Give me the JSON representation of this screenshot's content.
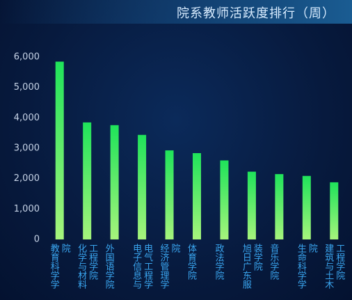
{
  "chart_data": {
    "type": "bar",
    "title": "院系教师活跃度排行（周）",
    "categories": [
      "教育科学学院",
      "化学与材料工程学院",
      "外国语学院",
      "电子信息与电气工程学院",
      "经济管理学院",
      "体育学院",
      "政法学院",
      "旭日广东服装学院",
      "音乐学院",
      "生命科学学院",
      "建筑与土木工程学院"
    ],
    "values": [
      5850,
      3850,
      3760,
      3440,
      2930,
      2840,
      2600,
      2230,
      2150,
      2090,
      1880
    ],
    "colors": [
      "#1fe35a",
      "#a6f47c"
    ],
    "ylim": [
      0,
      6000
    ],
    "yticks": [
      0,
      {
        "value": 1000,
        "label": "1,000"
      },
      {
        "value": 2000,
        "label": "2,000"
      },
      {
        "value": 3000,
        "label": "3,000"
      },
      {
        "value": 4000,
        "label": "4,000"
      },
      {
        "value": 5000,
        "label": "5,000"
      },
      {
        "value": 6000,
        "label": "6,000"
      }
    ],
    "grid": false
  }
}
